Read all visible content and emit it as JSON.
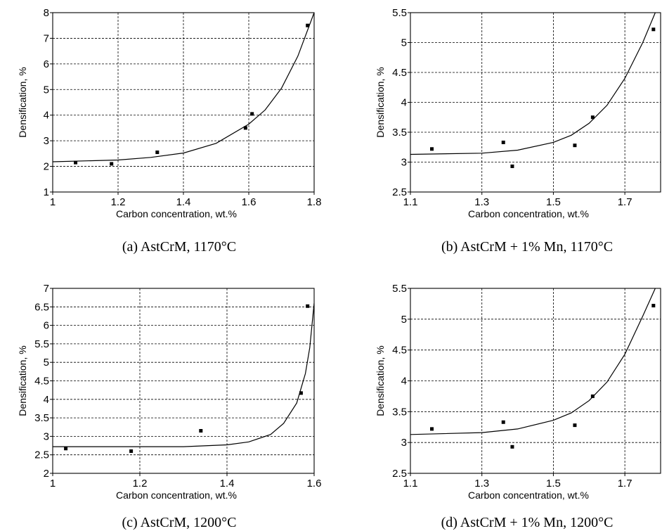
{
  "chart_data": [
    {
      "type": "scatter",
      "caption": "(a) AstCrM, 1170°C",
      "xlabel": "Carbon concentration, wt.%",
      "ylabel": "Densification, %",
      "xlim": [
        1.0,
        1.8
      ],
      "ylim": [
        1,
        8
      ],
      "x_ticks": [
        "1",
        "1.2",
        "1.4",
        "1.6",
        "1.8"
      ],
      "y_ticks": [
        "1",
        "2",
        "3",
        "4",
        "5",
        "6",
        "7",
        "8"
      ],
      "grid": true,
      "points": [
        {
          "x": 1.07,
          "y": 2.15
        },
        {
          "x": 1.18,
          "y": 2.1
        },
        {
          "x": 1.32,
          "y": 2.55
        },
        {
          "x": 1.59,
          "y": 3.5
        },
        {
          "x": 1.61,
          "y": 4.05
        },
        {
          "x": 1.78,
          "y": 7.5
        }
      ],
      "fit_curve": [
        {
          "x": 1.0,
          "y": 2.18
        },
        {
          "x": 1.2,
          "y": 2.25
        },
        {
          "x": 1.3,
          "y": 2.35
        },
        {
          "x": 1.4,
          "y": 2.52
        },
        {
          "x": 1.5,
          "y": 2.9
        },
        {
          "x": 1.6,
          "y": 3.65
        },
        {
          "x": 1.65,
          "y": 4.2
        },
        {
          "x": 1.7,
          "y": 5.05
        },
        {
          "x": 1.75,
          "y": 6.3
        },
        {
          "x": 1.8,
          "y": 8.0
        }
      ]
    },
    {
      "type": "scatter",
      "caption": "(b) AstCrM + 1% Mn, 1170°C",
      "xlabel": "Carbon concentration, wt.%",
      "ylabel": "Densification, %",
      "xlim": [
        1.1,
        1.8
      ],
      "ylim": [
        2.5,
        5.5
      ],
      "x_ticks": [
        "1.1",
        "1.3",
        "1.5",
        "1.7"
      ],
      "x_tick_values": [
        1.1,
        1.3,
        1.5,
        1.7
      ],
      "y_ticks": [
        "2.5",
        "3",
        "3.5",
        "4",
        "4.5",
        "5",
        "5.5"
      ],
      "grid": true,
      "points": [
        {
          "x": 1.16,
          "y": 3.22
        },
        {
          "x": 1.36,
          "y": 3.33
        },
        {
          "x": 1.385,
          "y": 2.93
        },
        {
          "x": 1.56,
          "y": 3.28
        },
        {
          "x": 1.61,
          "y": 3.75
        },
        {
          "x": 1.78,
          "y": 5.22
        }
      ],
      "fit_curve": [
        {
          "x": 1.1,
          "y": 3.13
        },
        {
          "x": 1.3,
          "y": 3.15
        },
        {
          "x": 1.4,
          "y": 3.2
        },
        {
          "x": 1.5,
          "y": 3.33
        },
        {
          "x": 1.55,
          "y": 3.45
        },
        {
          "x": 1.6,
          "y": 3.65
        },
        {
          "x": 1.65,
          "y": 3.95
        },
        {
          "x": 1.7,
          "y": 4.4
        },
        {
          "x": 1.75,
          "y": 5.0
        },
        {
          "x": 1.785,
          "y": 5.5
        }
      ]
    },
    {
      "type": "scatter",
      "caption": "(c) AstCrM, 1200°C",
      "xlabel": "Carbon concentration, wt.%",
      "ylabel": "Densification, %",
      "xlim": [
        1.0,
        1.6
      ],
      "ylim": [
        2,
        7
      ],
      "x_ticks": [
        "1",
        "1.2",
        "1.4",
        "1.6"
      ],
      "y_ticks": [
        "2",
        "2.5",
        "3",
        "3.5",
        "4",
        "4.5",
        "5",
        "5.5",
        "6",
        "6.5",
        "7"
      ],
      "grid": true,
      "points": [
        {
          "x": 1.03,
          "y": 2.67
        },
        {
          "x": 1.18,
          "y": 2.6
        },
        {
          "x": 1.34,
          "y": 3.15
        },
        {
          "x": 1.57,
          "y": 4.17
        },
        {
          "x": 1.585,
          "y": 6.52
        }
      ],
      "fit_curve": [
        {
          "x": 1.0,
          "y": 2.72
        },
        {
          "x": 1.3,
          "y": 2.72
        },
        {
          "x": 1.4,
          "y": 2.77
        },
        {
          "x": 1.45,
          "y": 2.85
        },
        {
          "x": 1.5,
          "y": 3.05
        },
        {
          "x": 1.53,
          "y": 3.35
        },
        {
          "x": 1.56,
          "y": 3.9
        },
        {
          "x": 1.58,
          "y": 4.7
        },
        {
          "x": 1.59,
          "y": 5.4
        },
        {
          "x": 1.6,
          "y": 6.6
        }
      ]
    },
    {
      "type": "scatter",
      "caption": "(d) AstCrM + 1% Mn, 1200°C",
      "xlabel": "Carbon concentration, wt.%",
      "ylabel": "Densification, %",
      "xlim": [
        1.1,
        1.8
      ],
      "ylim": [
        2.5,
        5.5
      ],
      "x_ticks": [
        "1.1",
        "1.3",
        "1.5",
        "1.7"
      ],
      "x_tick_values": [
        1.1,
        1.3,
        1.5,
        1.7
      ],
      "y_ticks": [
        "2.5",
        "3",
        "3.5",
        "4",
        "4.5",
        "5",
        "5.5"
      ],
      "grid": true,
      "points": [
        {
          "x": 1.16,
          "y": 3.22
        },
        {
          "x": 1.36,
          "y": 3.33
        },
        {
          "x": 1.385,
          "y": 2.93
        },
        {
          "x": 1.56,
          "y": 3.28
        },
        {
          "x": 1.61,
          "y": 3.75
        },
        {
          "x": 1.78,
          "y": 5.22
        }
      ],
      "fit_curve": [
        {
          "x": 1.1,
          "y": 3.13
        },
        {
          "x": 1.3,
          "y": 3.16
        },
        {
          "x": 1.4,
          "y": 3.22
        },
        {
          "x": 1.5,
          "y": 3.36
        },
        {
          "x": 1.55,
          "y": 3.48
        },
        {
          "x": 1.6,
          "y": 3.68
        },
        {
          "x": 1.65,
          "y": 3.98
        },
        {
          "x": 1.7,
          "y": 4.43
        },
        {
          "x": 1.75,
          "y": 5.05
        },
        {
          "x": 1.785,
          "y": 5.5
        }
      ]
    }
  ]
}
